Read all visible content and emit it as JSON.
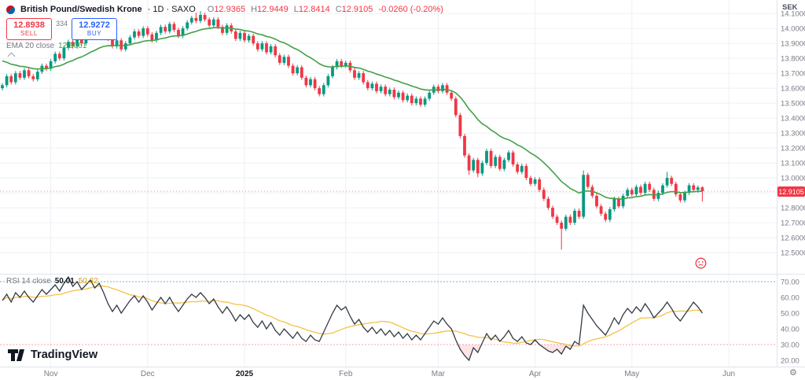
{
  "header": {
    "symbol": "British Pound/Swedish Krone",
    "details": "· 1D · SAXO",
    "ohlc": {
      "o_label": "O",
      "o": "12.9365",
      "h_label": "H",
      "h": "12.9449",
      "l_label": "L",
      "l": "12.8414",
      "c_label": "C",
      "c": "12.9105",
      "change": "-0.0260 (-0.20%)"
    },
    "sell": {
      "price": "12.8938",
      "label": "SELL"
    },
    "spread": "334",
    "buy": {
      "price": "12.9272",
      "label": "BUY"
    },
    "ema_name": "EMA 20 close",
    "ema_value": "12.9061"
  },
  "rsi_legend": {
    "name": "RSI 14 close",
    "value": "50.01",
    "ma": "50.32"
  },
  "axis": {
    "currency": "SEK",
    "price_label": "12.9105"
  },
  "logo": {
    "text": "TradingView"
  },
  "icons": {
    "gear": "⚙"
  },
  "colors": {
    "up": "#089981",
    "down": "#f23645",
    "ema": "#43a047",
    "rsi_line": "#343a46",
    "rsi_ma": "#f5c242",
    "band_upper": "#26a69a",
    "grid": "#edf0f5",
    "separator": "#e0e3eb",
    "axis_text": "#787b86",
    "buy": "#2962ff",
    "text_dark": "#131722",
    "label_bg": "#f23645"
  },
  "chart_data": {
    "type": "candlestick",
    "title": "British Pound/Swedish Krone, 1D, SAXO",
    "ylabel": "SEK",
    "ylim": [
      12.36,
      14.19
    ],
    "y_ticks": [
      14.1,
      14.0,
      13.9,
      13.8,
      13.7,
      13.6,
      13.5,
      13.4,
      13.3,
      13.2,
      13.1,
      13.0,
      12.9,
      12.8,
      12.7,
      12.6,
      12.5
    ],
    "x_ticks": [
      {
        "label": "Nov",
        "slot": 11
      },
      {
        "label": "Dec",
        "slot": 33
      },
      {
        "label": "2025",
        "slot": 55,
        "strong": true
      },
      {
        "label": "Feb",
        "slot": 78
      },
      {
        "label": "Mar",
        "slot": 99
      },
      {
        "label": "Apr",
        "slot": 121
      },
      {
        "label": "May",
        "slot": 143
      },
      {
        "label": "Jun",
        "slot": 165
      }
    ],
    "last_price": 12.9105,
    "ema_period": 20,
    "ema_seed": 13.8,
    "ema_last": 12.9061,
    "candles": [
      [
        13.6,
        13.635,
        13.585,
        13.62
      ],
      [
        13.62,
        13.695,
        13.605,
        13.68
      ],
      [
        13.68,
        13.695,
        13.625,
        13.64
      ],
      [
        13.64,
        13.715,
        13.625,
        13.7
      ],
      [
        13.7,
        13.715,
        13.655,
        13.67
      ],
      [
        13.67,
        13.735,
        13.655,
        13.72
      ],
      [
        13.72,
        13.735,
        13.665,
        13.68
      ],
      [
        13.68,
        13.695,
        13.645,
        13.66
      ],
      [
        13.66,
        13.725,
        13.645,
        13.71
      ],
      [
        13.71,
        13.765,
        13.695,
        13.75
      ],
      [
        13.75,
        13.765,
        13.715,
        13.73
      ],
      [
        13.73,
        13.795,
        13.715,
        13.78
      ],
      [
        13.78,
        13.845,
        13.765,
        13.83
      ],
      [
        13.83,
        13.845,
        13.785,
        13.8
      ],
      [
        13.8,
        13.885,
        13.785,
        13.87
      ],
      [
        13.87,
        13.925,
        13.855,
        13.91
      ],
      [
        13.91,
        13.925,
        13.865,
        13.88
      ],
      [
        13.88,
        13.955,
        13.865,
        13.94
      ],
      [
        13.94,
        13.955,
        13.885,
        13.9
      ],
      [
        13.9,
        13.975,
        13.885,
        13.96
      ],
      [
        13.96,
        14.015,
        13.945,
        14.0
      ],
      [
        14.0,
        14.015,
        13.955,
        13.97
      ],
      [
        13.97,
        14.035,
        13.955,
        14.02
      ],
      [
        14.02,
        14.035,
        13.965,
        13.98
      ],
      [
        13.98,
        13.995,
        13.915,
        13.93
      ],
      [
        13.93,
        13.945,
        13.865,
        13.88
      ],
      [
        13.88,
        13.935,
        13.865,
        13.92
      ],
      [
        13.92,
        13.935,
        13.845,
        13.86
      ],
      [
        13.86,
        13.915,
        13.845,
        13.9
      ],
      [
        13.9,
        13.955,
        13.885,
        13.94
      ],
      [
        13.94,
        13.995,
        13.925,
        13.98
      ],
      [
        13.98,
        13.995,
        13.935,
        13.95
      ],
      [
        13.95,
        14.015,
        13.935,
        14.0
      ],
      [
        14.0,
        14.015,
        13.945,
        13.96
      ],
      [
        13.96,
        13.975,
        13.905,
        13.92
      ],
      [
        13.92,
        13.985,
        13.905,
        13.97
      ],
      [
        13.97,
        14.025,
        13.955,
        14.01
      ],
      [
        14.01,
        14.025,
        13.965,
        13.98
      ],
      [
        13.98,
        14.045,
        13.965,
        14.03
      ],
      [
        14.03,
        14.045,
        13.975,
        13.99
      ],
      [
        13.99,
        14.005,
        13.935,
        13.95
      ],
      [
        13.95,
        14.015,
        13.935,
        14.0
      ],
      [
        14.0,
        14.055,
        13.985,
        14.04
      ],
      [
        14.04,
        14.085,
        14.025,
        14.07
      ],
      [
        14.07,
        14.105,
        14.035,
        14.05
      ],
      [
        14.05,
        14.115,
        14.035,
        14.09
      ],
      [
        14.09,
        14.105,
        14.045,
        14.06
      ],
      [
        14.06,
        14.075,
        14.005,
        14.02
      ],
      [
        14.02,
        14.075,
        14.005,
        14.06
      ],
      [
        14.06,
        14.075,
        13.995,
        14.01
      ],
      [
        14.01,
        14.025,
        13.955,
        13.97
      ],
      [
        13.97,
        14.035,
        13.955,
        14.02
      ],
      [
        14.02,
        14.035,
        13.965,
        13.98
      ],
      [
        13.98,
        13.995,
        13.915,
        13.93
      ],
      [
        13.93,
        13.985,
        13.915,
        13.97
      ],
      [
        13.97,
        13.985,
        13.905,
        13.92
      ],
      [
        13.92,
        13.965,
        13.905,
        13.95
      ],
      [
        13.95,
        13.965,
        13.885,
        13.9
      ],
      [
        13.9,
        13.915,
        13.845,
        13.86
      ],
      [
        13.86,
        13.915,
        13.845,
        13.9
      ],
      [
        13.9,
        13.915,
        13.825,
        13.84
      ],
      [
        13.84,
        13.895,
        13.825,
        13.88
      ],
      [
        13.88,
        13.895,
        13.805,
        13.82
      ],
      [
        13.82,
        13.835,
        13.755,
        13.77
      ],
      [
        13.77,
        13.825,
        13.755,
        13.81
      ],
      [
        13.81,
        13.825,
        13.735,
        13.75
      ],
      [
        13.75,
        13.765,
        13.685,
        13.7
      ],
      [
        13.7,
        13.755,
        13.685,
        13.74
      ],
      [
        13.74,
        13.755,
        13.655,
        13.67
      ],
      [
        13.67,
        13.685,
        13.605,
        13.62
      ],
      [
        13.62,
        13.675,
        13.605,
        13.66
      ],
      [
        13.66,
        13.675,
        13.585,
        13.6
      ],
      [
        13.6,
        13.615,
        13.545,
        13.56
      ],
      [
        13.56,
        13.635,
        13.545,
        13.62
      ],
      [
        13.62,
        13.695,
        13.605,
        13.68
      ],
      [
        13.68,
        13.755,
        13.665,
        13.74
      ],
      [
        13.74,
        13.795,
        13.725,
        13.78
      ],
      [
        13.78,
        13.795,
        13.735,
        13.75
      ],
      [
        13.75,
        13.785,
        13.735,
        13.77
      ],
      [
        13.77,
        13.785,
        13.705,
        13.72
      ],
      [
        13.72,
        13.735,
        13.655,
        13.67
      ],
      [
        13.67,
        13.715,
        13.655,
        13.7
      ],
      [
        13.7,
        13.715,
        13.625,
        13.64
      ],
      [
        13.64,
        13.655,
        13.585,
        13.6
      ],
      [
        13.6,
        13.645,
        13.585,
        13.63
      ],
      [
        13.63,
        13.645,
        13.565,
        13.58
      ],
      [
        13.58,
        13.625,
        13.565,
        13.61
      ],
      [
        13.61,
        13.625,
        13.545,
        13.56
      ],
      [
        13.56,
        13.605,
        13.545,
        13.59
      ],
      [
        13.59,
        13.605,
        13.525,
        13.54
      ],
      [
        13.54,
        13.585,
        13.525,
        13.57
      ],
      [
        13.57,
        13.585,
        13.505,
        13.52
      ],
      [
        13.52,
        13.565,
        13.505,
        13.55
      ],
      [
        13.55,
        13.565,
        13.485,
        13.5
      ],
      [
        13.5,
        13.545,
        13.485,
        13.53
      ],
      [
        13.53,
        13.545,
        13.475,
        13.49
      ],
      [
        13.49,
        13.545,
        13.475,
        13.53
      ],
      [
        13.53,
        13.585,
        13.515,
        13.57
      ],
      [
        13.57,
        13.625,
        13.555,
        13.61
      ],
      [
        13.61,
        13.625,
        13.565,
        13.58
      ],
      [
        13.58,
        13.635,
        13.565,
        13.62
      ],
      [
        13.62,
        13.635,
        13.555,
        13.57
      ],
      [
        13.57,
        13.585,
        13.515,
        13.53
      ],
      [
        13.53,
        13.545,
        13.405,
        13.42
      ],
      [
        13.42,
        13.435,
        13.265,
        13.28
      ],
      [
        13.28,
        13.295,
        13.135,
        13.15
      ],
      [
        13.15,
        13.165,
        13.02,
        13.05
      ],
      [
        13.05,
        13.135,
        13.035,
        13.12
      ],
      [
        13.12,
        13.135,
        13.005,
        13.03
      ],
      [
        13.03,
        13.115,
        13.015,
        13.1
      ],
      [
        13.1,
        13.195,
        13.085,
        13.18
      ],
      [
        13.18,
        13.195,
        13.065,
        13.08
      ],
      [
        13.08,
        13.155,
        13.065,
        13.14
      ],
      [
        13.14,
        13.155,
        13.045,
        13.06
      ],
      [
        13.06,
        13.135,
        13.045,
        13.12
      ],
      [
        13.12,
        13.185,
        13.105,
        13.17
      ],
      [
        13.17,
        13.185,
        13.075,
        13.09
      ],
      [
        13.09,
        13.105,
        13.025,
        13.04
      ],
      [
        13.04,
        13.095,
        13.025,
        13.08
      ],
      [
        13.08,
        13.095,
        12.985,
        13.0
      ],
      [
        13.0,
        13.015,
        12.945,
        12.96
      ],
      [
        12.96,
        13.005,
        12.945,
        12.99
      ],
      [
        12.99,
        13.005,
        12.905,
        12.92
      ],
      [
        12.92,
        12.935,
        12.845,
        12.86
      ],
      [
        12.86,
        12.875,
        12.785,
        12.8
      ],
      [
        12.8,
        12.815,
        12.725,
        12.74
      ],
      [
        12.74,
        12.755,
        12.685,
        12.7
      ],
      [
        12.7,
        12.715,
        12.52,
        12.66
      ],
      [
        12.66,
        12.755,
        12.645,
        12.74
      ],
      [
        12.74,
        12.755,
        12.685,
        12.7
      ],
      [
        12.7,
        12.795,
        12.685,
        12.78
      ],
      [
        12.78,
        12.795,
        12.725,
        12.74
      ],
      [
        12.74,
        13.05,
        12.725,
        13.02
      ],
      [
        13.02,
        13.035,
        12.925,
        12.94
      ],
      [
        12.94,
        12.955,
        12.865,
        12.88
      ],
      [
        12.88,
        12.895,
        12.795,
        12.81
      ],
      [
        12.81,
        12.825,
        12.745,
        12.76
      ],
      [
        12.76,
        12.775,
        12.705,
        12.72
      ],
      [
        12.72,
        12.805,
        12.705,
        12.79
      ],
      [
        12.79,
        12.875,
        12.775,
        12.86
      ],
      [
        12.86,
        12.875,
        12.795,
        12.81
      ],
      [
        12.81,
        12.895,
        12.795,
        12.88
      ],
      [
        12.88,
        12.935,
        12.865,
        12.92
      ],
      [
        12.92,
        12.935,
        12.875,
        12.89
      ],
      [
        12.89,
        12.955,
        12.875,
        12.94
      ],
      [
        12.94,
        12.955,
        12.885,
        12.9
      ],
      [
        12.9,
        12.975,
        12.885,
        12.96
      ],
      [
        12.96,
        12.975,
        12.905,
        12.92
      ],
      [
        12.92,
        12.935,
        12.845,
        12.86
      ],
      [
        12.86,
        12.915,
        12.845,
        12.9
      ],
      [
        12.9,
        12.965,
        12.885,
        12.95
      ],
      [
        12.95,
        13.04,
        12.935,
        13.0
      ],
      [
        13.0,
        13.015,
        12.945,
        12.96
      ],
      [
        12.96,
        12.975,
        12.875,
        12.89
      ],
      [
        12.89,
        12.905,
        12.835,
        12.85
      ],
      [
        12.85,
        12.915,
        12.835,
        12.9
      ],
      [
        12.9,
        12.965,
        12.885,
        12.95
      ],
      [
        12.95,
        12.965,
        12.905,
        12.92
      ],
      [
        12.92,
        12.95,
        12.9,
        12.9365
      ],
      [
        12.9365,
        12.9449,
        12.8414,
        12.9105
      ]
    ],
    "rsi": {
      "type": "line",
      "period": 14,
      "last": 50.01,
      "ma_last": 50.32,
      "upper_band": 70,
      "lower_band": 30,
      "ticks": [
        70,
        60,
        50,
        40,
        30,
        20
      ],
      "ylim": [
        16,
        74
      ],
      "values": [
        58,
        62,
        57,
        63,
        60,
        64,
        60,
        57,
        61,
        65,
        62,
        65,
        68,
        64,
        69,
        73,
        67,
        70,
        65,
        68,
        71,
        66,
        69,
        63,
        56,
        51,
        55,
        50,
        54,
        58,
        61,
        57,
        61,
        57,
        52,
        56,
        60,
        56,
        60,
        55,
        51,
        55,
        59,
        62,
        60,
        63,
        60,
        56,
        59,
        54,
        50,
        54,
        50,
        45,
        49,
        46,
        49,
        44,
        41,
        45,
        40,
        44,
        39,
        36,
        40,
        37,
        34,
        38,
        34,
        32,
        36,
        33,
        32,
        38,
        44,
        50,
        55,
        52,
        54,
        48,
        43,
        46,
        41,
        38,
        41,
        37,
        40,
        36,
        39,
        35,
        38,
        34,
        37,
        33,
        36,
        33,
        37,
        41,
        45,
        43,
        47,
        43,
        40,
        33,
        27,
        23,
        20,
        28,
        25,
        31,
        37,
        33,
        36,
        32,
        35,
        39,
        34,
        32,
        35,
        31,
        30,
        33,
        30,
        28,
        26,
        25,
        27,
        24,
        29,
        27,
        32,
        30,
        55,
        50,
        46,
        42,
        39,
        36,
        41,
        47,
        43,
        49,
        53,
        50,
        54,
        51,
        56,
        52,
        47,
        50,
        53,
        57,
        53,
        48,
        45,
        49,
        53,
        57,
        54,
        50
      ]
    }
  }
}
